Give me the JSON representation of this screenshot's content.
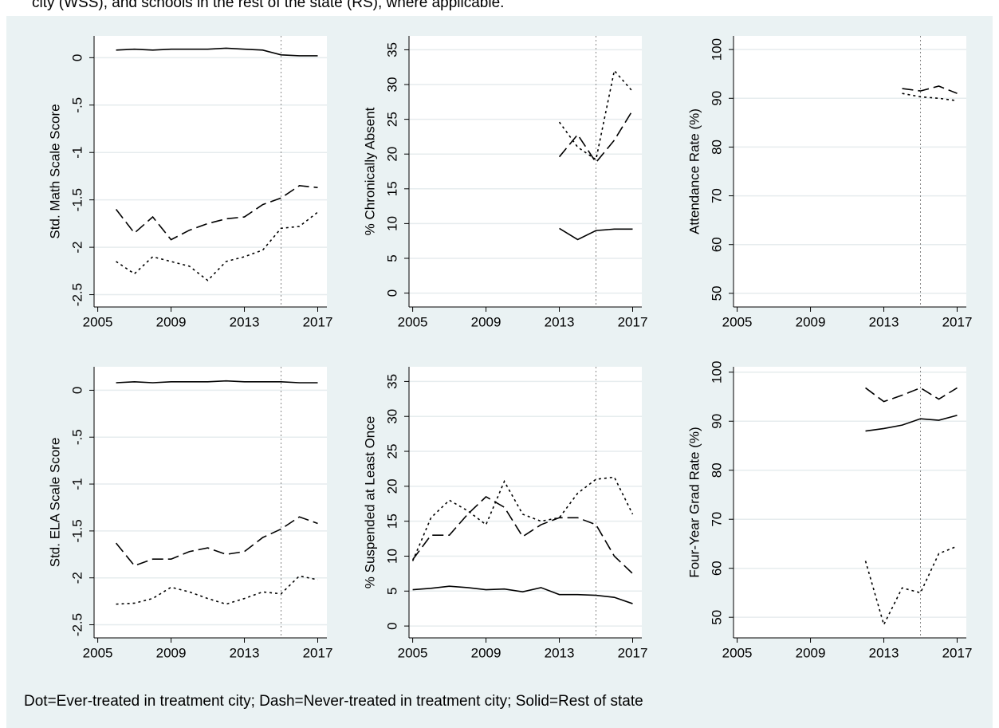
{
  "caption": "city (WSS), and schools in the rest of the state (RS), where applicable.",
  "note": "Dot=Ever-treated in treatment city; Dash=Never-treated in treatment city; Solid=Rest of state",
  "chart_data": [
    {
      "type": "line",
      "y_label": "Std. Math Scale Score",
      "x": [
        2006,
        2007,
        2008,
        2009,
        2010,
        2011,
        2012,
        2013,
        2014,
        2015,
        2016,
        2017
      ],
      "series": [
        {
          "color": "#000000",
          "dash": "solid",
          "values": [
            0.08,
            0.09,
            0.08,
            0.09,
            0.09,
            0.09,
            0.1,
            0.09,
            0.08,
            0.03,
            0.02,
            0.02
          ]
        },
        {
          "color": "#000000",
          "dash": "dashed",
          "values": [
            -1.6,
            -1.85,
            -1.68,
            -1.92,
            -1.82,
            -1.75,
            -1.7,
            -1.68,
            -1.55,
            -1.48,
            -1.35,
            -1.37
          ]
        },
        {
          "color": "#000000",
          "dash": "dotted",
          "values": [
            -2.15,
            -2.28,
            -2.1,
            -2.15,
            -2.2,
            -2.35,
            -2.15,
            -2.1,
            -2.03,
            -1.8,
            -1.78,
            -1.63
          ]
        }
      ],
      "xlim": [
        2004.8,
        2017.5
      ],
      "xticks": [
        2005,
        2009,
        2013,
        2017
      ],
      "ylim": [
        -2.63,
        0.23
      ],
      "yticks": [
        0,
        {
          "value": -0.5,
          "label": "-.5"
        },
        -1,
        -1.5,
        -2,
        -2.5
      ],
      "grid": true,
      "xline": 2015
    },
    {
      "type": "line",
      "y_label": "% Chronically Absent",
      "x": [
        2013,
        2014,
        2015,
        2016,
        2017
      ],
      "series": [
        {
          "color": "#000000",
          "dash": "solid",
          "values": [
            9.3,
            7.7,
            9,
            9.2,
            9.2
          ]
        },
        {
          "color": "#000000",
          "dash": "dashed",
          "values": [
            19.6,
            22.8,
            18.8,
            22,
            26.3
          ]
        },
        {
          "color": "#000000",
          "dash": "dotted",
          "values": [
            24.6,
            21,
            19.2,
            32,
            29
          ]
        }
      ],
      "xlim": [
        2004.8,
        2017.5
      ],
      "xticks": [
        2005,
        2009,
        2013,
        2017
      ],
      "ylim": [
        -2,
        37
      ],
      "yticks": [
        0,
        5,
        10,
        15,
        20,
        25,
        30,
        35
      ],
      "grid": true,
      "xline": 2015
    },
    {
      "type": "line",
      "y_label": "Attendance Rate (%)",
      "x": [
        2014,
        2015,
        2016,
        2017
      ],
      "series": [
        {
          "color": "#000000",
          "dash": "dashed",
          "values": [
            92,
            91.5,
            92.5,
            91
          ]
        },
        {
          "color": "#000000",
          "dash": "dotted",
          "values": [
            91,
            90.3,
            90,
            89.5
          ]
        }
      ],
      "xlim": [
        2004.8,
        2017.5
      ],
      "xticks": [
        2005,
        2009,
        2013,
        2017
      ],
      "ylim": [
        47.2,
        102.8
      ],
      "yticks": [
        50,
        60,
        70,
        80,
        90,
        100
      ],
      "grid": true,
      "xline": 2015
    },
    {
      "type": "line",
      "y_label": "Std. ELA Scale Score",
      "x": [
        2006,
        2007,
        2008,
        2009,
        2010,
        2011,
        2012,
        2013,
        2014,
        2015,
        2016,
        2017
      ],
      "series": [
        {
          "color": "#000000",
          "dash": "solid",
          "values": [
            0.08,
            0.09,
            0.08,
            0.09,
            0.09,
            0.09,
            0.1,
            0.09,
            0.09,
            0.09,
            0.08,
            0.08
          ]
        },
        {
          "color": "#000000",
          "dash": "dashed",
          "values": [
            -1.63,
            -1.87,
            -1.8,
            -1.8,
            -1.72,
            -1.68,
            -1.75,
            -1.72,
            -1.57,
            -1.48,
            -1.35,
            -1.42
          ]
        },
        {
          "color": "#000000",
          "dash": "dotted",
          "values": [
            -2.28,
            -2.27,
            -2.22,
            -2.1,
            -2.15,
            -2.22,
            -2.28,
            -2.22,
            -2.15,
            -2.17,
            -1.98,
            -2.02
          ]
        }
      ],
      "xlim": [
        2004.8,
        2017.5
      ],
      "xticks": [
        2005,
        2009,
        2013,
        2017
      ],
      "ylim": [
        -2.64,
        0.25
      ],
      "yticks": [
        0,
        {
          "value": -0.5,
          "label": "-.5"
        },
        -1,
        -1.5,
        -2,
        -2.5
      ],
      "grid": true,
      "xline": 2015
    },
    {
      "type": "line",
      "y_label": "% Suspended at Least Once",
      "x": [
        2005,
        2006,
        2007,
        2008,
        2009,
        2010,
        2011,
        2012,
        2013,
        2014,
        2015,
        2016,
        2017
      ],
      "series": [
        {
          "color": "#000000",
          "dash": "solid",
          "values": [
            5.2,
            5.4,
            5.7,
            5.5,
            5.2,
            5.3,
            4.9,
            5.5,
            4.5,
            4.5,
            4.4,
            4.1,
            3.2
          ]
        },
        {
          "color": "#000000",
          "dash": "dashed",
          "values": [
            9.5,
            13,
            13,
            16,
            18.5,
            17,
            12.8,
            14.5,
            15.5,
            15.5,
            14.5,
            10,
            7.5
          ]
        },
        {
          "color": "#000000",
          "dash": "dotted",
          "values": [
            9.3,
            15.5,
            18,
            16.5,
            14.5,
            20.7,
            16,
            15,
            15.5,
            19,
            21,
            21.3,
            16
          ]
        }
      ],
      "xlim": [
        2004.8,
        2017.5
      ],
      "xticks": [
        2005,
        2009,
        2013,
        2017
      ],
      "ylim": [
        -1.7,
        37.1
      ],
      "yticks": [
        0,
        5,
        10,
        15,
        20,
        25,
        30,
        35
      ],
      "grid": true,
      "xline": 2015
    },
    {
      "type": "line",
      "y_label": "Four-Year Grad Rate (%)",
      "x": [
        2012,
        2013,
        2014,
        2015,
        2016,
        2017
      ],
      "series": [
        {
          "color": "#000000",
          "dash": "solid",
          "values": [
            88,
            88.5,
            89.2,
            90.5,
            90.2,
            91.2
          ]
        },
        {
          "color": "#000000",
          "dash": "dashed",
          "values": [
            96.8,
            94,
            95.3,
            96.8,
            94.5,
            96.8
          ]
        },
        {
          "color": "#000000",
          "dash": "dotted",
          "values": [
            61.5,
            48.5,
            56,
            55,
            63,
            64.5
          ]
        }
      ],
      "xlim": [
        2004.8,
        2017.5
      ],
      "xticks": [
        2005,
        2009,
        2013,
        2017
      ],
      "ylim": [
        45.8,
        101.1
      ],
      "yticks": [
        50,
        60,
        70,
        80,
        90,
        100
      ],
      "grid": true,
      "xline": 2015
    }
  ]
}
